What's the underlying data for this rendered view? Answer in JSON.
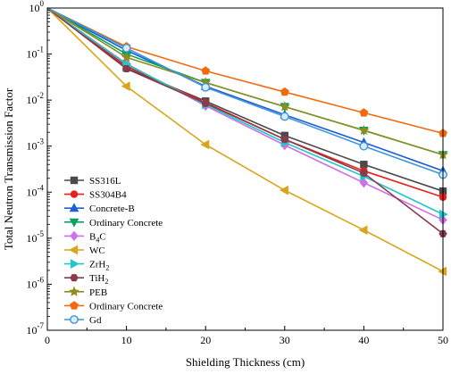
{
  "chart_data": {
    "type": "line",
    "title": "",
    "xlabel": "Shielding Thickness (cm)",
    "ylabel": "Total Neutron Transmission Factor",
    "xlim": [
      0,
      50
    ],
    "ylim": [
      1e-07,
      1
    ],
    "yscale": "log",
    "grid": false,
    "legend_position": "left",
    "x": [
      0,
      10,
      20,
      30,
      40,
      50
    ],
    "x_tick_labels": [
      "0",
      "10",
      "20",
      "30",
      "40",
      "50"
    ],
    "y_ticks": [
      {
        "value": 1,
        "base": "10",
        "exp": "0"
      },
      {
        "value": 0.1,
        "base": "10",
        "exp": "-1"
      },
      {
        "value": 0.01,
        "base": "10",
        "exp": "-2"
      },
      {
        "value": 0.001,
        "base": "10",
        "exp": "-3"
      },
      {
        "value": 0.0001,
        "base": "10",
        "exp": "-4"
      },
      {
        "value": 1e-05,
        "base": "10",
        "exp": "-5"
      },
      {
        "value": 1e-06,
        "base": "10",
        "exp": "-6"
      },
      {
        "value": 1e-07,
        "base": "10",
        "exp": "-7"
      }
    ],
    "series": [
      {
        "label": [
          {
            "t": "SS316L"
          }
        ],
        "color": "#4a4a4a",
        "marker": "square",
        "values": [
          1,
          0.05,
          0.0095,
          0.0017,
          0.0004,
          0.000105
        ]
      },
      {
        "label": [
          {
            "t": "SS304B4"
          }
        ],
        "color": "#e8201c",
        "marker": "circle",
        "values": [
          1,
          0.055,
          0.0088,
          0.0014,
          0.00029,
          7.8e-05
        ]
      },
      {
        "label": [
          {
            "t": "Concrete-B"
          }
        ],
        "color": "#1f5fd6",
        "marker": "triangle-up",
        "values": [
          1,
          0.12,
          0.02,
          0.0048,
          0.0012,
          0.00029
        ]
      },
      {
        "label": [
          {
            "t": "Ordinary Concrete"
          }
        ],
        "color": "#07a35f",
        "marker": "triangle-down",
        "values": [
          1,
          0.1,
          0.024,
          0.0072,
          0.0022,
          0.00065
        ]
      },
      {
        "label": [
          {
            "t": "B"
          },
          {
            "t": "4",
            "sub": true
          },
          {
            "t": "C"
          }
        ],
        "color": "#d070e8",
        "marker": "diamond",
        "values": [
          1,
          0.062,
          0.0075,
          0.00105,
          0.00016,
          2.5e-05
        ]
      },
      {
        "label": [
          {
            "t": "WC"
          }
        ],
        "color": "#d9a61a",
        "marker": "triangle-left",
        "values": [
          1,
          0.02,
          0.00108,
          0.00011,
          1.5e-05,
          1.9e-06
        ]
      },
      {
        "label": [
          {
            "t": "ZrH"
          },
          {
            "t": "2",
            "sub": true
          }
        ],
        "color": "#1fc8c8",
        "marker": "triangle-right",
        "values": [
          1,
          0.06,
          0.008,
          0.0012,
          0.00022,
          3.3e-05
        ]
      },
      {
        "label": [
          {
            "t": "TiH"
          },
          {
            "t": "2",
            "sub": true
          }
        ],
        "color": "#8a3a4a",
        "marker": "hexagon",
        "values": [
          1,
          0.048,
          0.0085,
          0.0014,
          0.00026,
          1.25e-05
        ]
      },
      {
        "label": [
          {
            "t": "PEB"
          }
        ],
        "color": "#8d8d20",
        "marker": "star",
        "values": [
          1,
          0.085,
          0.024,
          0.0072,
          0.0022,
          0.00065
        ]
      },
      {
        "label": [
          {
            "t": "Ordinary Concrete"
          }
        ],
        "color": "#f26a0f",
        "marker": "pentagon",
        "values": [
          1,
          0.145,
          0.043,
          0.015,
          0.0053,
          0.0019
        ]
      },
      {
        "label": [
          {
            "t": "Gd"
          }
        ],
        "color": "#3f95d8",
        "marker": "open-circle",
        "values": [
          1,
          0.135,
          0.019,
          0.0044,
          0.001,
          0.00024
        ]
      }
    ]
  }
}
